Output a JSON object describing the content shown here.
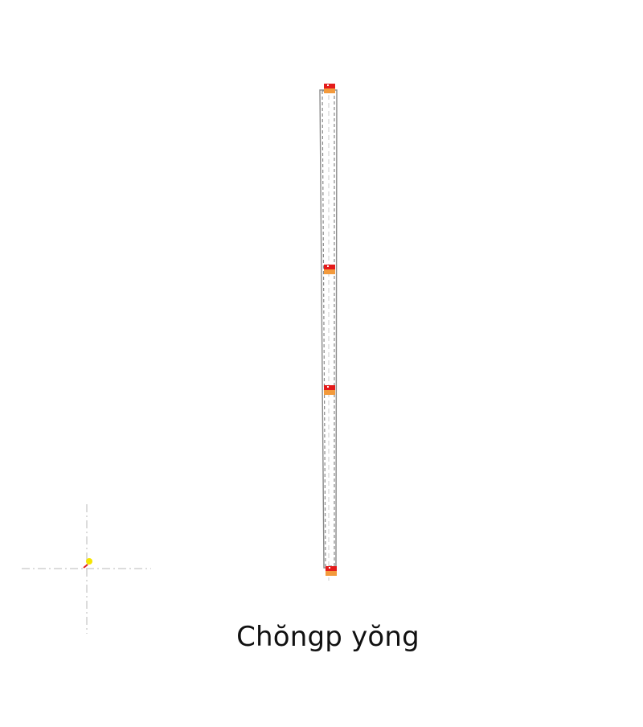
{
  "caption": "Chŏngp yŏng",
  "colors": {
    "background": "#ffffff",
    "outline": "#8a8a8a",
    "centerline": "#c8c8c8",
    "marker_red": "#e41b1b",
    "marker_orange": "#f39a3c",
    "crosshair": "#d0d0d0",
    "origin_dot": "#f5e400",
    "origin_tick": "#e02020",
    "text": "#111111"
  }
}
